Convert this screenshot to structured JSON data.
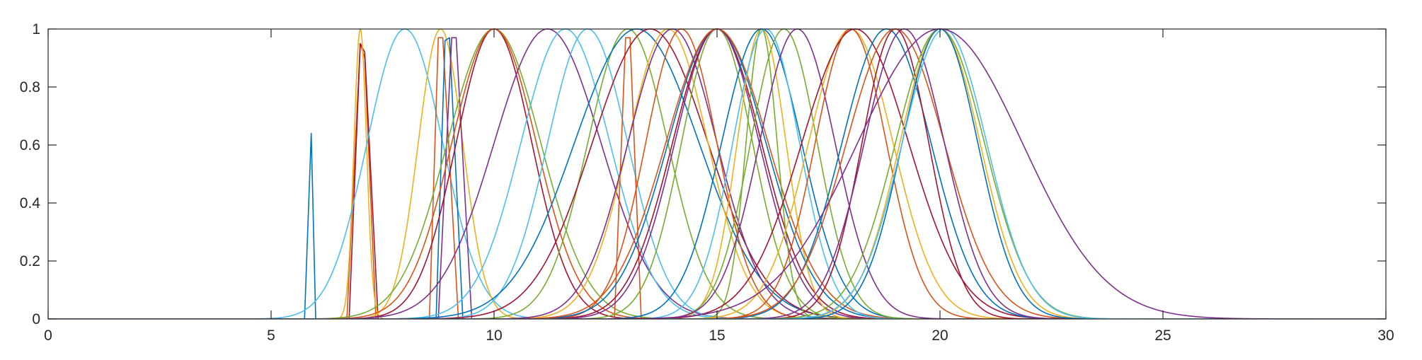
{
  "chart_data": {
    "type": "line",
    "title": "",
    "xlabel": "",
    "ylabel": "",
    "xlim": [
      0,
      30
    ],
    "ylim": [
      0,
      1
    ],
    "xticks": [
      0,
      5,
      10,
      15,
      20,
      25,
      30
    ],
    "yticks": [
      0,
      0.2,
      0.4,
      0.6,
      0.8,
      1
    ],
    "xtick_labels": [
      "0",
      "5",
      "10",
      "15",
      "20",
      "25",
      "30"
    ],
    "ytick_labels": [
      "0",
      "0.2",
      "0.4",
      "0.6",
      "0.8",
      "1"
    ],
    "grid": false,
    "box": true,
    "legend": "none",
    "colors": [
      "#0072BD",
      "#D95319",
      "#EDB120",
      "#7E2F8E",
      "#77AC30",
      "#4DBEEE",
      "#A2142F"
    ],
    "series": [
      {
        "color": "#0072BD",
        "x": [
          5.75,
          5.9,
          6.0
        ],
        "y": [
          0,
          0.64,
          0
        ]
      },
      {
        "color": "#D95319",
        "x": [
          6.7,
          7.0,
          7.1,
          7.35
        ],
        "y": [
          0,
          0.95,
          0.9,
          0
        ]
      },
      {
        "color": "#A2142F",
        "x": [
          6.75,
          7.0,
          7.1,
          7.4
        ],
        "y": [
          0,
          0.95,
          0.92,
          0
        ]
      },
      {
        "color": "#EDB120",
        "shape": "bell",
        "center": 7.0,
        "sigma": 0.14,
        "peak": 1.0
      },
      {
        "color": "#4DBEEE",
        "shape": "bell",
        "center": 8.0,
        "sigma": 0.85,
        "peak": 1.0
      },
      {
        "color": "#EDB120",
        "shape": "bell",
        "center": 8.8,
        "sigma": 0.5,
        "peak": 1.0
      },
      {
        "color": "#D95319",
        "x": [
          8.55,
          8.75,
          8.85,
          9.2
        ],
        "y": [
          0,
          0.97,
          0.97,
          0
        ]
      },
      {
        "color": "#0072BD",
        "x": [
          8.7,
          8.9,
          9.0,
          9.3
        ],
        "y": [
          0,
          0.96,
          0.97,
          0
        ]
      },
      {
        "color": "#7E2F8E",
        "x": [
          8.75,
          9.05,
          9.15,
          9.5
        ],
        "y": [
          0,
          0.97,
          0.97,
          0
        ]
      },
      {
        "color": "#A2142F",
        "shape": "bell",
        "center": 10.0,
        "sigma": 0.85,
        "peak": 1.0
      },
      {
        "color": "#77AC30",
        "shape": "bell",
        "center": 10.0,
        "sigma": 1.05,
        "peak": 1.0
      },
      {
        "color": "#D95319",
        "shape": "bell",
        "center": 10.0,
        "sigma": 0.95,
        "peak": 1.0
      },
      {
        "color": "#7E2F8E",
        "shape": "bell",
        "center": 11.2,
        "sigma": 1.2,
        "peak": 1.0
      },
      {
        "color": "#4DBEEE",
        "shape": "bell",
        "center": 11.6,
        "sigma": 1.0,
        "peak": 1.0
      },
      {
        "color": "#4DBEEE",
        "shape": "bell",
        "center": 12.1,
        "sigma": 0.9,
        "peak": 1.0
      },
      {
        "color": "#D95319",
        "x": [
          12.7,
          12.95,
          13.05,
          13.3
        ],
        "y": [
          0,
          0.97,
          0.97,
          0
        ]
      },
      {
        "color": "#77AC30",
        "shape": "bell",
        "center": 13.0,
        "sigma": 0.9,
        "peak": 1.0
      },
      {
        "color": "#0072BD",
        "shape": "bell",
        "center": 13.2,
        "sigma": 1.4,
        "peak": 1.0
      },
      {
        "color": "#A2142F",
        "shape": "bell",
        "center": 13.5,
        "sigma": 1.3,
        "peak": 1.0
      },
      {
        "color": "#EDB120",
        "shape": "bell",
        "center": 13.9,
        "sigma": 0.9,
        "peak": 1.0
      },
      {
        "color": "#7E2F8E",
        "shape": "bell",
        "center": 14.0,
        "sigma": 1.0,
        "peak": 1.0
      },
      {
        "color": "#D95319",
        "shape": "bell",
        "center": 14.2,
        "sigma": 0.8,
        "peak": 1.0
      },
      {
        "color": "#0072BD",
        "shape": "bell",
        "center": 15.0,
        "sigma": 1.1,
        "peak": 1.0
      },
      {
        "color": "#77AC30",
        "shape": "bell",
        "center": 15.0,
        "sigma": 0.8,
        "peak": 1.0
      },
      {
        "color": "#A2142F",
        "shape": "bell",
        "center": 15.0,
        "sigma": 1.0,
        "peak": 1.0
      },
      {
        "color": "#7E2F8E",
        "shape": "bell",
        "center": 15.0,
        "sigma": 0.95,
        "peak": 1.0
      },
      {
        "color": "#D95319",
        "shape": "bell",
        "center": 15.0,
        "sigma": 1.15,
        "peak": 1.0
      },
      {
        "color": "#EDB120",
        "shape": "bell",
        "center": 16.0,
        "sigma": 0.55,
        "peak": 1.0
      },
      {
        "color": "#77AC30",
        "shape": "bell",
        "center": 16.0,
        "sigma": 0.35,
        "peak": 1.0
      },
      {
        "color": "#0072BD",
        "shape": "bell",
        "center": 16.0,
        "sigma": 0.9,
        "peak": 1.0
      },
      {
        "color": "#4DBEEE",
        "shape": "bell",
        "center": 16.1,
        "sigma": 0.75,
        "peak": 1.0
      },
      {
        "color": "#77AC30",
        "shape": "bell",
        "center": 16.5,
        "sigma": 0.75,
        "peak": 1.0
      },
      {
        "color": "#7E2F8E",
        "shape": "bell",
        "center": 16.8,
        "sigma": 0.85,
        "peak": 1.0
      },
      {
        "color": "#EDB120",
        "shape": "bell",
        "center": 18.0,
        "sigma": 0.95,
        "peak": 1.0
      },
      {
        "color": "#D95319",
        "shape": "bell",
        "center": 18.0,
        "sigma": 0.8,
        "peak": 1.0
      },
      {
        "color": "#A2142F",
        "shape": "bell",
        "center": 18.1,
        "sigma": 1.2,
        "peak": 1.0
      },
      {
        "color": "#0072BD",
        "shape": "bell",
        "center": 18.8,
        "sigma": 1.0,
        "peak": 1.0
      },
      {
        "color": "#A2142F",
        "shape": "bell",
        "center": 19.0,
        "sigma": 0.75,
        "peak": 1.0
      },
      {
        "color": "#D95319",
        "shape": "bell",
        "center": 19.0,
        "sigma": 1.1,
        "peak": 1.0
      },
      {
        "color": "#7E2F8E",
        "shape": "bell",
        "center": 19.2,
        "sigma": 0.9,
        "peak": 1.0
      },
      {
        "color": "#77AC30",
        "shape": "bell",
        "center": 20.0,
        "sigma": 1.0,
        "peak": 1.0
      },
      {
        "color": "#EDB120",
        "shape": "bell",
        "center": 20.0,
        "sigma": 0.9,
        "peak": 1.0
      },
      {
        "color": "#0072BD",
        "shape": "bell",
        "center": 20.0,
        "sigma": 0.85,
        "peak": 1.0
      },
      {
        "color": "#4DBEEE",
        "shape": "bell",
        "center": 20.1,
        "sigma": 0.95,
        "peak": 1.0
      },
      {
        "color": "#7E2F8E",
        "shape": "bell",
        "center": 20.0,
        "sigma": 1.85,
        "peak": 1.0
      }
    ]
  }
}
